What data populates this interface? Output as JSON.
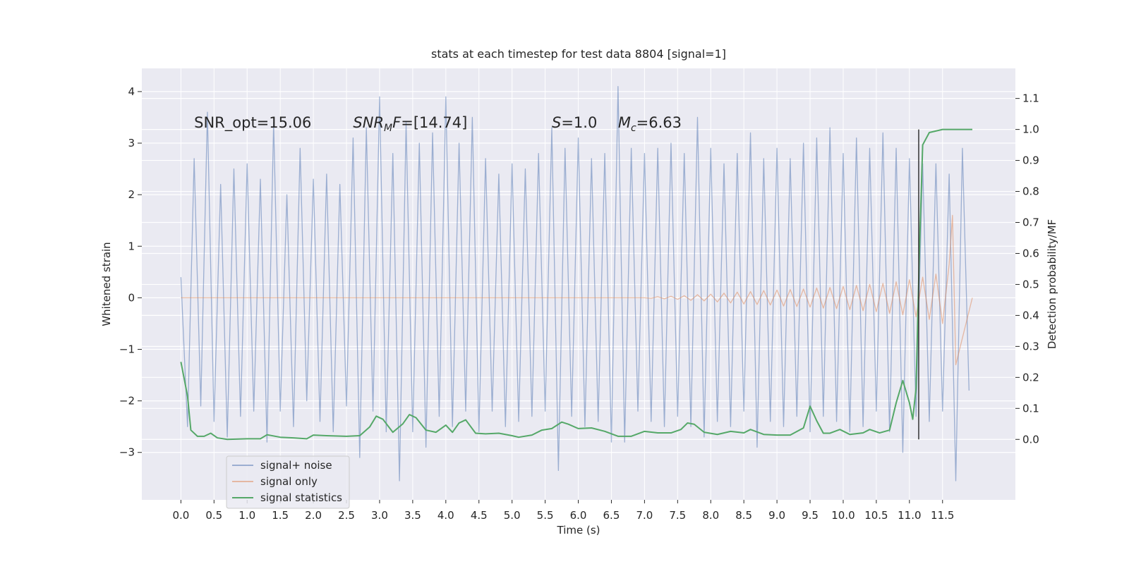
{
  "chart_data": {
    "type": "line",
    "title": "stats at each timestep for test data 8804 [signal=1]",
    "xlabel": "Time (s)",
    "ylabel": "Whitened strain",
    "y2label": "Detection probability/MF",
    "grid": true,
    "legend": "lower left",
    "xlim": [
      -0.59,
      12.6
    ],
    "xticks": [
      {
        "value": 0,
        "label": "0.0"
      },
      0.5,
      {
        "value": 1,
        "label": "1.0"
      },
      1.5,
      {
        "value": 2,
        "label": "2.0"
      },
      2.5,
      {
        "value": 3,
        "label": "3.0"
      },
      3.5,
      {
        "value": 4,
        "label": "4.0"
      },
      4.5,
      {
        "value": 5,
        "label": "5.0"
      },
      5.5,
      {
        "value": 6,
        "label": "6.0"
      },
      6.5,
      {
        "value": 7,
        "label": "7.0"
      },
      7.5,
      {
        "value": 8,
        "label": "8.0"
      },
      8.5,
      {
        "value": 9,
        "label": "9.0"
      },
      9.5,
      {
        "value": 10,
        "label": "10.0"
      },
      10.5,
      {
        "value": 11,
        "label": "11.0"
      },
      11.5
    ],
    "ylim": [
      -3.92,
      4.45
    ],
    "yticks": [
      {
        "value": -3,
        "label": "−3"
      },
      {
        "value": -2,
        "label": "−2"
      },
      {
        "value": -1,
        "label": "−1"
      },
      0,
      1,
      2,
      3,
      4
    ],
    "y2lim": [
      -0.195,
      1.197
    ],
    "y2ticks": [
      {
        "value": 0,
        "label": "0.0"
      },
      0.1,
      0.2,
      0.3,
      0.4,
      0.5,
      0.6,
      0.7,
      0.8,
      0.9,
      {
        "value": 1,
        "label": "1.0"
      },
      1.1
    ],
    "series": [
      {
        "name": "signal+ noise",
        "color": "#4c72b0",
        "alpha": 0.5,
        "x": [
          0,
          0.1,
          0.2,
          0.3,
          0.4,
          0.5,
          0.6,
          0.7,
          0.8,
          0.9,
          1,
          1.1,
          1.2,
          1.3,
          1.4,
          1.5,
          1.6,
          1.7,
          1.8,
          1.9,
          2,
          2.1,
          2.2,
          2.3,
          2.4,
          2.5,
          2.6,
          2.7,
          2.8,
          2.9,
          3,
          3.1,
          3.2,
          3.3,
          3.4,
          3.5,
          3.6,
          3.7,
          3.8,
          3.9,
          4,
          4.1,
          4.2,
          4.3,
          4.4,
          4.5,
          4.6,
          4.7,
          4.8,
          4.9,
          5,
          5.1,
          5.2,
          5.3,
          5.4,
          5.5,
          5.6,
          5.7,
          5.8,
          5.9,
          6,
          6.1,
          6.2,
          6.3,
          6.4,
          6.5,
          6.6,
          6.7,
          6.8,
          6.9,
          7,
          7.1,
          7.2,
          7.3,
          7.4,
          7.5,
          7.6,
          7.7,
          7.8,
          7.9,
          8,
          8.1,
          8.2,
          8.3,
          8.4,
          8.5,
          8.6,
          8.7,
          8.8,
          8.9,
          9,
          9.1,
          9.2,
          9.3,
          9.4,
          9.5,
          9.6,
          9.7,
          9.8,
          9.9,
          10,
          10.1,
          10.2,
          10.3,
          10.4,
          10.5,
          10.6,
          10.7,
          10.8,
          10.9,
          11,
          11.1,
          11.2,
          11.3,
          11.4,
          11.5,
          11.6,
          11.7,
          11.8,
          11.9
        ],
        "values": [
          0.4,
          -2.5,
          2.7,
          -2.1,
          3.6,
          -2.4,
          2.2,
          -2.7,
          2.5,
          -2.3,
          2.6,
          -2.2,
          2.3,
          -2.8,
          3.4,
          -2.2,
          2.0,
          -2.5,
          2.9,
          -2.0,
          2.3,
          -2.4,
          2.4,
          -2.6,
          2.2,
          -2.1,
          3.1,
          -3.1,
          3.3,
          -2.2,
          3.9,
          -2.6,
          2.8,
          -3.55,
          3.4,
          -2.6,
          3.0,
          -2.9,
          3.2,
          -2.3,
          3.9,
          -2.5,
          3.0,
          -2.2,
          3.5,
          -2.6,
          2.7,
          -2.2,
          2.4,
          -2.5,
          2.6,
          -2.4,
          2.5,
          -2.3,
          2.8,
          -2.2,
          3.3,
          -3.35,
          2.9,
          -2.3,
          3.1,
          -2.5,
          2.7,
          -2.4,
          2.8,
          -2.8,
          4.1,
          -2.8,
          2.9,
          -2.2,
          2.8,
          -2.4,
          2.9,
          -2.5,
          3.0,
          -2.3,
          2.8,
          -2.5,
          3.5,
          -2.7,
          2.9,
          -2.4,
          2.6,
          -2.5,
          2.8,
          -2.2,
          3.2,
          -2.9,
          2.7,
          -2.4,
          2.9,
          -2.5,
          2.7,
          -2.3,
          3.0,
          -2.6,
          3.1,
          -2.3,
          3.3,
          -2.4,
          2.8,
          -2.6,
          3.1,
          -2.5,
          2.9,
          -2.2,
          3.2,
          -2.6,
          2.9,
          -3.0,
          2.7,
          -2.3,
          2.6,
          -2.4,
          2.6,
          -2.2,
          2.4,
          -3.55,
          2.9,
          -1.8
        ]
      },
      {
        "name": "signal only",
        "color": "#dd8452",
        "alpha": 0.5,
        "x": [
          0,
          7,
          7.1,
          7.2,
          7.3,
          7.4,
          7.5,
          7.6,
          7.7,
          7.8,
          7.9,
          8,
          8.1,
          8.2,
          8.3,
          8.4,
          8.5,
          8.6,
          8.7,
          8.8,
          8.9,
          9,
          9.1,
          9.2,
          9.3,
          9.4,
          9.5,
          9.6,
          9.7,
          9.8,
          9.9,
          10,
          10.1,
          10.2,
          10.3,
          10.4,
          10.5,
          10.6,
          10.7,
          10.8,
          10.9,
          11,
          11.1,
          11.2,
          11.3,
          11.4,
          11.5,
          11.6,
          11.65,
          11.7,
          11.95
        ],
        "values": [
          0,
          0,
          -0.01,
          0.02,
          -0.02,
          0.03,
          -0.03,
          0.04,
          -0.05,
          0.06,
          -0.06,
          0.07,
          -0.08,
          0.09,
          -0.1,
          0.11,
          -0.12,
          0.12,
          -0.13,
          0.14,
          -0.14,
          0.15,
          -0.16,
          0.16,
          -0.17,
          0.17,
          -0.18,
          0.19,
          -0.2,
          0.2,
          -0.21,
          0.22,
          -0.23,
          0.24,
          -0.25,
          0.26,
          -0.27,
          0.28,
          -0.3,
          0.31,
          -0.33,
          0.35,
          -0.37,
          0.4,
          -0.42,
          0.46,
          -0.5,
          0.65,
          1.6,
          -1.3,
          0
        ]
      },
      {
        "name": "signal statistics",
        "color": "#55a868",
        "alpha": 1,
        "axis": "y2",
        "x": [
          0,
          0.1,
          0.15,
          0.25,
          0.35,
          0.45,
          0.55,
          0.7,
          1,
          1.2,
          1.3,
          1.5,
          1.7,
          1.9,
          2,
          2.2,
          2.5,
          2.7,
          2.85,
          2.95,
          3.05,
          3.2,
          3.35,
          3.45,
          3.55,
          3.7,
          3.85,
          4,
          4.1,
          4.2,
          4.3,
          4.45,
          4.6,
          4.8,
          5,
          5.1,
          5.3,
          5.45,
          5.6,
          5.75,
          5.85,
          6,
          6.2,
          6.4,
          6.6,
          6.8,
          7,
          7.2,
          7.4,
          7.55,
          7.65,
          7.75,
          7.9,
          8.1,
          8.3,
          8.5,
          8.6,
          8.8,
          9,
          9.2,
          9.4,
          9.5,
          9.6,
          9.7,
          9.8,
          9.95,
          10.1,
          10.3,
          10.4,
          10.55,
          10.7,
          10.8,
          10.9,
          11,
          11.05,
          11.1,
          11.15,
          11.2,
          11.3,
          11.5,
          11.95
        ],
        "values": [
          0.25,
          0.14,
          0.03,
          0.01,
          0.01,
          0.02,
          0.005,
          0,
          0.002,
          0.002,
          0.015,
          0.007,
          0.005,
          0.002,
          0.014,
          0.012,
          0.01,
          0.012,
          0.04,
          0.075,
          0.065,
          0.023,
          0.05,
          0.08,
          0.07,
          0.03,
          0.023,
          0.046,
          0.023,
          0.053,
          0.063,
          0.02,
          0.018,
          0.02,
          0.012,
          0.007,
          0.014,
          0.03,
          0.035,
          0.056,
          0.049,
          0.035,
          0.037,
          0.026,
          0.01,
          0.01,
          0.026,
          0.021,
          0.021,
          0.032,
          0.053,
          0.049,
          0.023,
          0.016,
          0.026,
          0.021,
          0.032,
          0.016,
          0.014,
          0.014,
          0.037,
          0.107,
          0.06,
          0.02,
          0.02,
          0.032,
          0.016,
          0.021,
          0.032,
          0.021,
          0.03,
          0.118,
          0.19,
          0.118,
          0.065,
          0.165,
          0.6,
          0.95,
          0.99,
          1,
          1
        ]
      }
    ],
    "vlines": [
      {
        "x": 11.14,
        "ymin": 0,
        "ymax": 1,
        "axis": "y2",
        "color": "#333333"
      }
    ],
    "annotations": [
      {
        "parts": [
          {
            "text": "SNR_opt=15.06"
          }
        ]
      },
      {
        "parts": [
          {
            "text": "SNR",
            "style": "italic"
          },
          {
            "text": "M",
            "style": "sub"
          },
          {
            "text": "F",
            "style": "italic"
          },
          {
            "text": "=[14.74]"
          }
        ]
      },
      {
        "parts": [
          {
            "text": "S",
            "style": "italic"
          },
          {
            "text": "=1.0"
          }
        ]
      },
      {
        "parts": [
          {
            "text": "M",
            "style": "italic"
          },
          {
            "text": "c",
            "style": "sub"
          },
          {
            "text": "=6.63"
          }
        ]
      }
    ]
  }
}
